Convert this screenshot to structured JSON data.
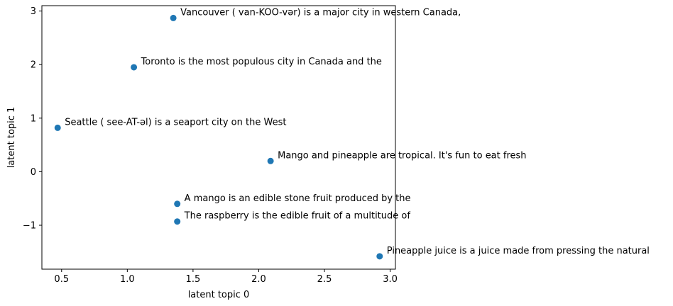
{
  "chart_data": {
    "type": "scatter",
    "title": "",
    "xlabel": "latent topic 0",
    "ylabel": "latent topic 1",
    "xlim": [
      0.35,
      3.04
    ],
    "ylim": [
      -1.82,
      3.1
    ],
    "xticks": [
      0.5,
      1.0,
      1.5,
      2.0,
      2.5,
      3.0
    ],
    "xtick_labels": [
      "0.5",
      "1.0",
      "1.5",
      "2.0",
      "2.5",
      "3.0"
    ],
    "yticks": [
      -1,
      0,
      1,
      2,
      3
    ],
    "ytick_labels": [
      "−1",
      "0",
      "1",
      "2",
      "3"
    ],
    "grid": false,
    "marker_color": "#1f77b4",
    "points": [
      {
        "x": 1.35,
        "y": 2.87,
        "label": "Vancouver ( van-KOO-vər) is a major city in western Canada,"
      },
      {
        "x": 1.05,
        "y": 1.95,
        "label": "Toronto is the most populous city in Canada and the"
      },
      {
        "x": 0.47,
        "y": 0.82,
        "label": "Seattle ( see-AT-əl) is a seaport city on the West"
      },
      {
        "x": 2.09,
        "y": 0.2,
        "label": "Mango and pineapple are tropical. It's fun to eat fresh"
      },
      {
        "x": 1.38,
        "y": -0.6,
        "label": "A mango is an edible stone fruit produced by the"
      },
      {
        "x": 1.38,
        "y": -0.93,
        "label": "The raspberry is the edible fruit of a multitude of"
      },
      {
        "x": 2.92,
        "y": -1.58,
        "label": "Pineapple juice is a juice made from pressing the natural"
      }
    ]
  }
}
